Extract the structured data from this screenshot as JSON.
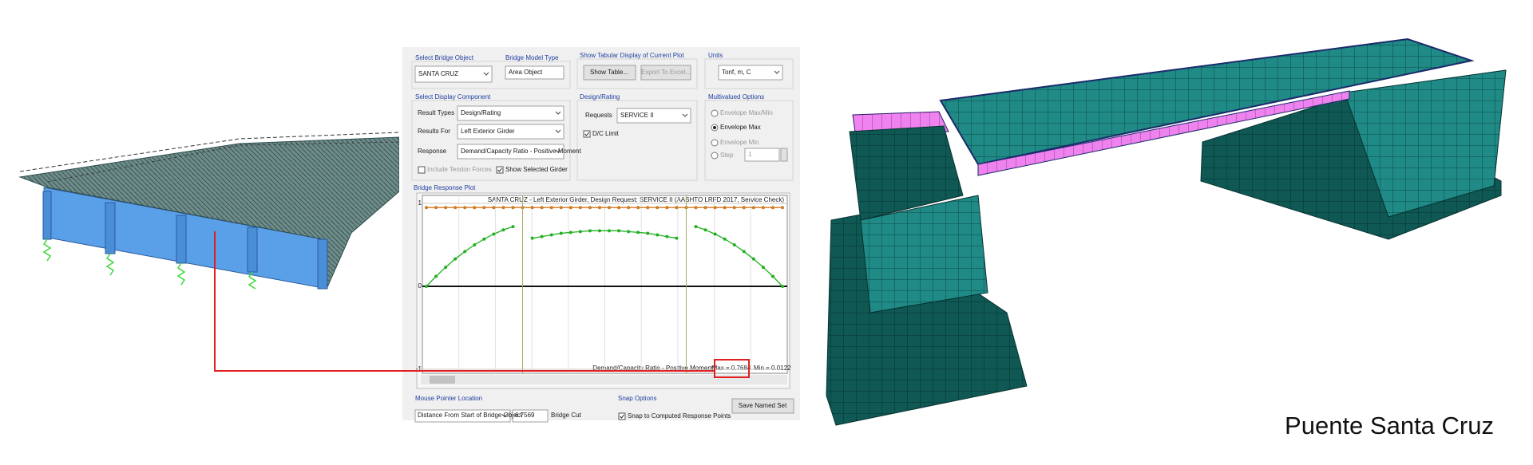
{
  "caption": "Puente Santa Cruz",
  "dialog": {
    "select_bridge_object": {
      "label": "Select Bridge Object",
      "value": "SANTA CRUZ"
    },
    "bridge_model_type": {
      "label": "Bridge Model Type",
      "value": "Area Object"
    },
    "tabular": {
      "label": "Show Tabular Display of Current Plot",
      "buttons": [
        "Show Table...",
        "Export To Excel..."
      ]
    },
    "units": {
      "label": "Units",
      "value": "Tonf, m, C"
    },
    "display_component": {
      "label": "Select Display Component",
      "rows": [
        {
          "label": "Result Types",
          "value": "Design/Rating"
        },
        {
          "label": "Results For",
          "value": "Left Exterior Girder"
        },
        {
          "label": "Response",
          "value": "Demand/Capacity Ratio - Positive Moment"
        }
      ],
      "checkboxes": [
        "Include Tendon Forces",
        "Show Selected Girder"
      ]
    },
    "design_rating": {
      "label": "Design/Rating",
      "requests_label": "Requests",
      "requests": "SERVICE II",
      "dc_limit": "D/C Limit"
    },
    "multivalued": {
      "label": "Multivalued Options",
      "options": [
        "Envelope Max/Min",
        "Envelope Max",
        "Envelope Min",
        "Step"
      ],
      "step": "1"
    },
    "plot": {
      "type": "line",
      "title": "Bridge Response Plot",
      "subtitle": "SANTA CRUZ - Left Exterior Girder,  Design Request: SERVICE II  (AASHTO LRFD 2017, Service Check)",
      "x_label": "Demand/Capacity Ratio - Positive Moment",
      "max": "Max = 0.7684",
      "min": "Min = 0.0122",
      "ylim": [
        -1,
        1
      ],
      "yticks": [
        -1,
        0,
        1
      ],
      "grid": true,
      "series": [
        {
          "color": "#d07a20",
          "values": [
            0.95,
            0.95,
            0.95,
            0.95,
            0.95,
            0.95,
            0.95,
            0.95,
            0.95,
            0.95,
            0.95,
            0.95,
            0.95,
            0.95,
            0.95,
            0.95,
            0.95,
            0.95,
            0.95,
            0.95,
            0.95,
            0.95,
            0.95,
            0.95,
            0.95,
            0.95,
            0.95,
            0.95,
            0.95,
            0.95,
            0.95,
            0.95,
            0.95,
            0.95,
            0.95,
            0.95,
            0.95,
            0.95
          ]
        },
        {
          "color": "#22b022",
          "values": [
            0.0,
            0.12,
            0.23,
            0.33,
            0.42,
            0.5,
            0.57,
            0.63,
            0.68,
            0.72,
            null,
            0.58,
            0.6,
            0.62,
            0.64,
            0.65,
            0.66,
            0.67,
            0.67,
            0.67,
            0.67,
            0.66,
            0.65,
            0.64,
            0.62,
            0.6,
            0.58,
            null,
            0.72,
            0.68,
            0.63,
            0.57,
            0.5,
            0.42,
            0.33,
            0.23,
            0.12,
            0.0
          ]
        }
      ]
    },
    "mouse": {
      "label": "Mouse Pointer Location",
      "mode": "Distance From Start of Bridge Object",
      "value": "6.7569",
      "unit": "Bridge Cut"
    },
    "snap": {
      "label": "Snap Options",
      "option": "Snap to Computed Response Points"
    },
    "save": "Save Named Set"
  }
}
